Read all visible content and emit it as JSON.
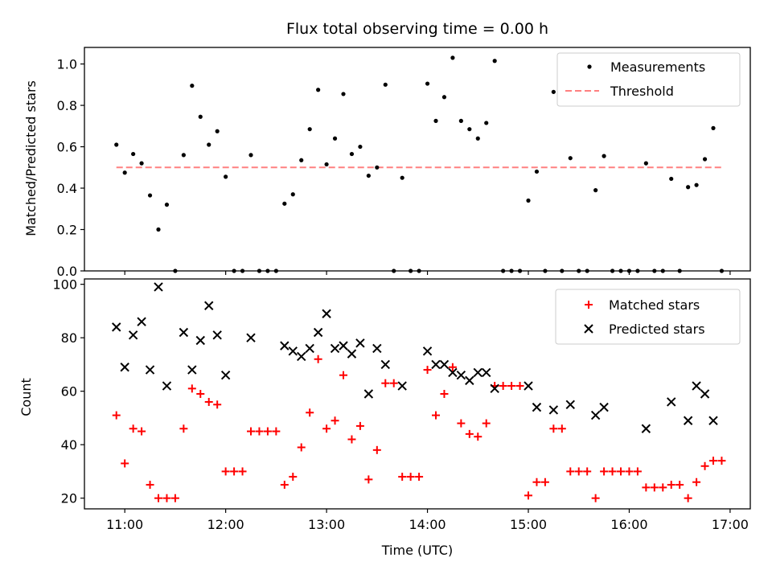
{
  "chart_data": [
    {
      "type": "scatter",
      "title": "Flux total observing time = 0.00 h",
      "ylabel": "Matched/Predicted stars",
      "xlabel": "",
      "xlim": [
        "10:36",
        "17:12"
      ],
      "ylim": [
        0,
        1.08
      ],
      "yticks": [
        "0.0",
        "0.2",
        "0.4",
        "0.6",
        "0.8",
        "1.0"
      ],
      "grid": false,
      "legend_position": "top-right",
      "series": [
        {
          "name": "Measurements",
          "marker": "dot",
          "color": "#000000",
          "points": [
            [
              "10:55",
              0.61
            ],
            [
              "11:00",
              0.475
            ],
            [
              "11:05",
              0.565
            ],
            [
              "11:10",
              0.52
            ],
            [
              "11:15",
              0.365
            ],
            [
              "11:20",
              0.2
            ],
            [
              "11:25",
              0.32
            ],
            [
              "11:30",
              0.0
            ],
            [
              "11:35",
              0.56
            ],
            [
              "11:40",
              0.895
            ],
            [
              "11:45",
              0.745
            ],
            [
              "11:50",
              0.61
            ],
            [
              "11:55",
              0.675
            ],
            [
              "12:00",
              0.455
            ],
            [
              "12:05",
              0.0
            ],
            [
              "12:10",
              0.0
            ],
            [
              "12:15",
              0.56
            ],
            [
              "12:20",
              0.0
            ],
            [
              "12:25",
              0.0
            ],
            [
              "12:30",
              0.0
            ],
            [
              "12:35",
              0.325
            ],
            [
              "12:40",
              0.37
            ],
            [
              "12:45",
              0.535
            ],
            [
              "12:50",
              0.685
            ],
            [
              "12:55",
              0.875
            ],
            [
              "13:00",
              0.515
            ],
            [
              "13:05",
              0.64
            ],
            [
              "13:10",
              0.855
            ],
            [
              "13:15",
              0.565
            ],
            [
              "13:20",
              0.6
            ],
            [
              "13:25",
              0.46
            ],
            [
              "13:30",
              0.5
            ],
            [
              "13:35",
              0.9
            ],
            [
              "13:40",
              0.0
            ],
            [
              "13:45",
              0.45
            ],
            [
              "13:50",
              0.0
            ],
            [
              "13:55",
              0.0
            ],
            [
              "14:00",
              0.905
            ],
            [
              "14:05",
              0.725
            ],
            [
              "14:10",
              0.84
            ],
            [
              "14:15",
              1.03
            ],
            [
              "14:20",
              0.725
            ],
            [
              "14:25",
              0.685
            ],
            [
              "14:30",
              0.64
            ],
            [
              "14:35",
              0.715
            ],
            [
              "14:40",
              1.015
            ],
            [
              "14:45",
              0.0
            ],
            [
              "14:50",
              0.0
            ],
            [
              "14:55",
              0.0
            ],
            [
              "15:00",
              0.34
            ],
            [
              "15:05",
              0.48
            ],
            [
              "15:10",
              0.0
            ],
            [
              "15:15",
              0.865
            ],
            [
              "15:20",
              0.0
            ],
            [
              "15:25",
              0.545
            ],
            [
              "15:30",
              0.0
            ],
            [
              "15:35",
              0.0
            ],
            [
              "15:40",
              0.39
            ],
            [
              "15:45",
              0.555
            ],
            [
              "15:50",
              0.0
            ],
            [
              "15:55",
              0.0
            ],
            [
              "16:00",
              0.0
            ],
            [
              "16:05",
              0.0
            ],
            [
              "16:10",
              0.52
            ],
            [
              "16:15",
              0.0
            ],
            [
              "16:20",
              0.0
            ],
            [
              "16:25",
              0.445
            ],
            [
              "16:30",
              0.0
            ],
            [
              "16:35",
              0.405
            ],
            [
              "16:40",
              0.415
            ],
            [
              "16:45",
              0.54
            ],
            [
              "16:50",
              0.69
            ],
            [
              "16:55",
              0.0
            ]
          ]
        },
        {
          "name": "Threshold",
          "marker": "dashed-line",
          "color": "#ff8080",
          "points": [
            [
              "10:55",
              0.5
            ],
            [
              "16:55",
              0.5
            ]
          ]
        }
      ]
    },
    {
      "type": "scatter",
      "title": "",
      "ylabel": "Count",
      "xlabel": "Time (UTC)",
      "xlim": [
        "10:36",
        "17:12"
      ],
      "ylim": [
        16,
        102
      ],
      "yticks": [
        "20",
        "40",
        "60",
        "80",
        "100"
      ],
      "xticks": [
        "11:00",
        "12:00",
        "13:00",
        "14:00",
        "15:00",
        "16:00",
        "17:00"
      ],
      "grid": false,
      "legend_position": "top-right",
      "series": [
        {
          "name": "Matched stars",
          "marker": "plus",
          "color": "#ff0000",
          "points": [
            [
              "10:55",
              51
            ],
            [
              "11:00",
              33
            ],
            [
              "11:05",
              46
            ],
            [
              "11:10",
              45
            ],
            [
              "11:15",
              25
            ],
            [
              "11:20",
              20
            ],
            [
              "11:25",
              20
            ],
            [
              "11:30",
              20
            ],
            [
              "11:35",
              46
            ],
            [
              "11:40",
              61
            ],
            [
              "11:45",
              59
            ],
            [
              "11:50",
              56
            ],
            [
              "11:55",
              55
            ],
            [
              "12:00",
              30
            ],
            [
              "12:05",
              30
            ],
            [
              "12:10",
              30
            ],
            [
              "12:15",
              45
            ],
            [
              "12:20",
              45
            ],
            [
              "12:25",
              45
            ],
            [
              "12:30",
              45
            ],
            [
              "12:35",
              25
            ],
            [
              "12:40",
              28
            ],
            [
              "12:45",
              39
            ],
            [
              "12:50",
              52
            ],
            [
              "12:55",
              72
            ],
            [
              "13:00",
              46
            ],
            [
              "13:05",
              49
            ],
            [
              "13:10",
              66
            ],
            [
              "13:15",
              42
            ],
            [
              "13:20",
              47
            ],
            [
              "13:25",
              27
            ],
            [
              "13:30",
              38
            ],
            [
              "13:35",
              63
            ],
            [
              "13:40",
              63
            ],
            [
              "13:45",
              28
            ],
            [
              "13:50",
              28
            ],
            [
              "13:55",
              28
            ],
            [
              "14:00",
              68
            ],
            [
              "14:05",
              51
            ],
            [
              "14:10",
              59
            ],
            [
              "14:15",
              69
            ],
            [
              "14:20",
              48
            ],
            [
              "14:25",
              44
            ],
            [
              "14:30",
              43
            ],
            [
              "14:35",
              48
            ],
            [
              "14:40",
              62
            ],
            [
              "14:45",
              62
            ],
            [
              "14:50",
              62
            ],
            [
              "14:55",
              62
            ],
            [
              "15:00",
              21
            ],
            [
              "15:05",
              26
            ],
            [
              "15:10",
              26
            ],
            [
              "15:15",
              46
            ],
            [
              "15:20",
              46
            ],
            [
              "15:25",
              30
            ],
            [
              "15:30",
              30
            ],
            [
              "15:35",
              30
            ],
            [
              "15:40",
              20
            ],
            [
              "15:45",
              30
            ],
            [
              "15:50",
              30
            ],
            [
              "15:55",
              30
            ],
            [
              "16:00",
              30
            ],
            [
              "16:05",
              30
            ],
            [
              "16:10",
              24
            ],
            [
              "16:15",
              24
            ],
            [
              "16:20",
              24
            ],
            [
              "16:25",
              25
            ],
            [
              "16:30",
              25
            ],
            [
              "16:35",
              20
            ],
            [
              "16:40",
              26
            ],
            [
              "16:45",
              32
            ],
            [
              "16:50",
              34
            ],
            [
              "16:55",
              34
            ]
          ]
        },
        {
          "name": "Predicted stars",
          "marker": "x",
          "color": "#000000",
          "points": [
            [
              "10:55",
              84
            ],
            [
              "11:00",
              69
            ],
            [
              "11:05",
              81
            ],
            [
              "11:10",
              86
            ],
            [
              "11:15",
              68
            ],
            [
              "11:20",
              99
            ],
            [
              "11:25",
              62
            ],
            [
              "11:35",
              82
            ],
            [
              "11:40",
              68
            ],
            [
              "11:45",
              79
            ],
            [
              "11:50",
              92
            ],
            [
              "11:55",
              81
            ],
            [
              "12:00",
              66
            ],
            [
              "12:15",
              80
            ],
            [
              "12:35",
              77
            ],
            [
              "12:40",
              75
            ],
            [
              "12:45",
              73
            ],
            [
              "12:50",
              76
            ],
            [
              "12:55",
              82
            ],
            [
              "13:00",
              89
            ],
            [
              "13:05",
              76
            ],
            [
              "13:10",
              77
            ],
            [
              "13:15",
              74
            ],
            [
              "13:20",
              78
            ],
            [
              "13:25",
              59
            ],
            [
              "13:30",
              76
            ],
            [
              "13:35",
              70
            ],
            [
              "13:45",
              62
            ],
            [
              "14:00",
              75
            ],
            [
              "14:05",
              70
            ],
            [
              "14:10",
              70
            ],
            [
              "14:15",
              67
            ],
            [
              "14:20",
              66
            ],
            [
              "14:25",
              64
            ],
            [
              "14:30",
              67
            ],
            [
              "14:35",
              67
            ],
            [
              "14:40",
              61
            ],
            [
              "15:00",
              62
            ],
            [
              "15:05",
              54
            ],
            [
              "15:15",
              53
            ],
            [
              "15:25",
              55
            ],
            [
              "15:40",
              51
            ],
            [
              "15:45",
              54
            ],
            [
              "16:10",
              46
            ],
            [
              "16:25",
              56
            ],
            [
              "16:35",
              49
            ],
            [
              "16:40",
              62
            ],
            [
              "16:45",
              59
            ],
            [
              "16:50",
              49
            ]
          ]
        }
      ]
    }
  ]
}
